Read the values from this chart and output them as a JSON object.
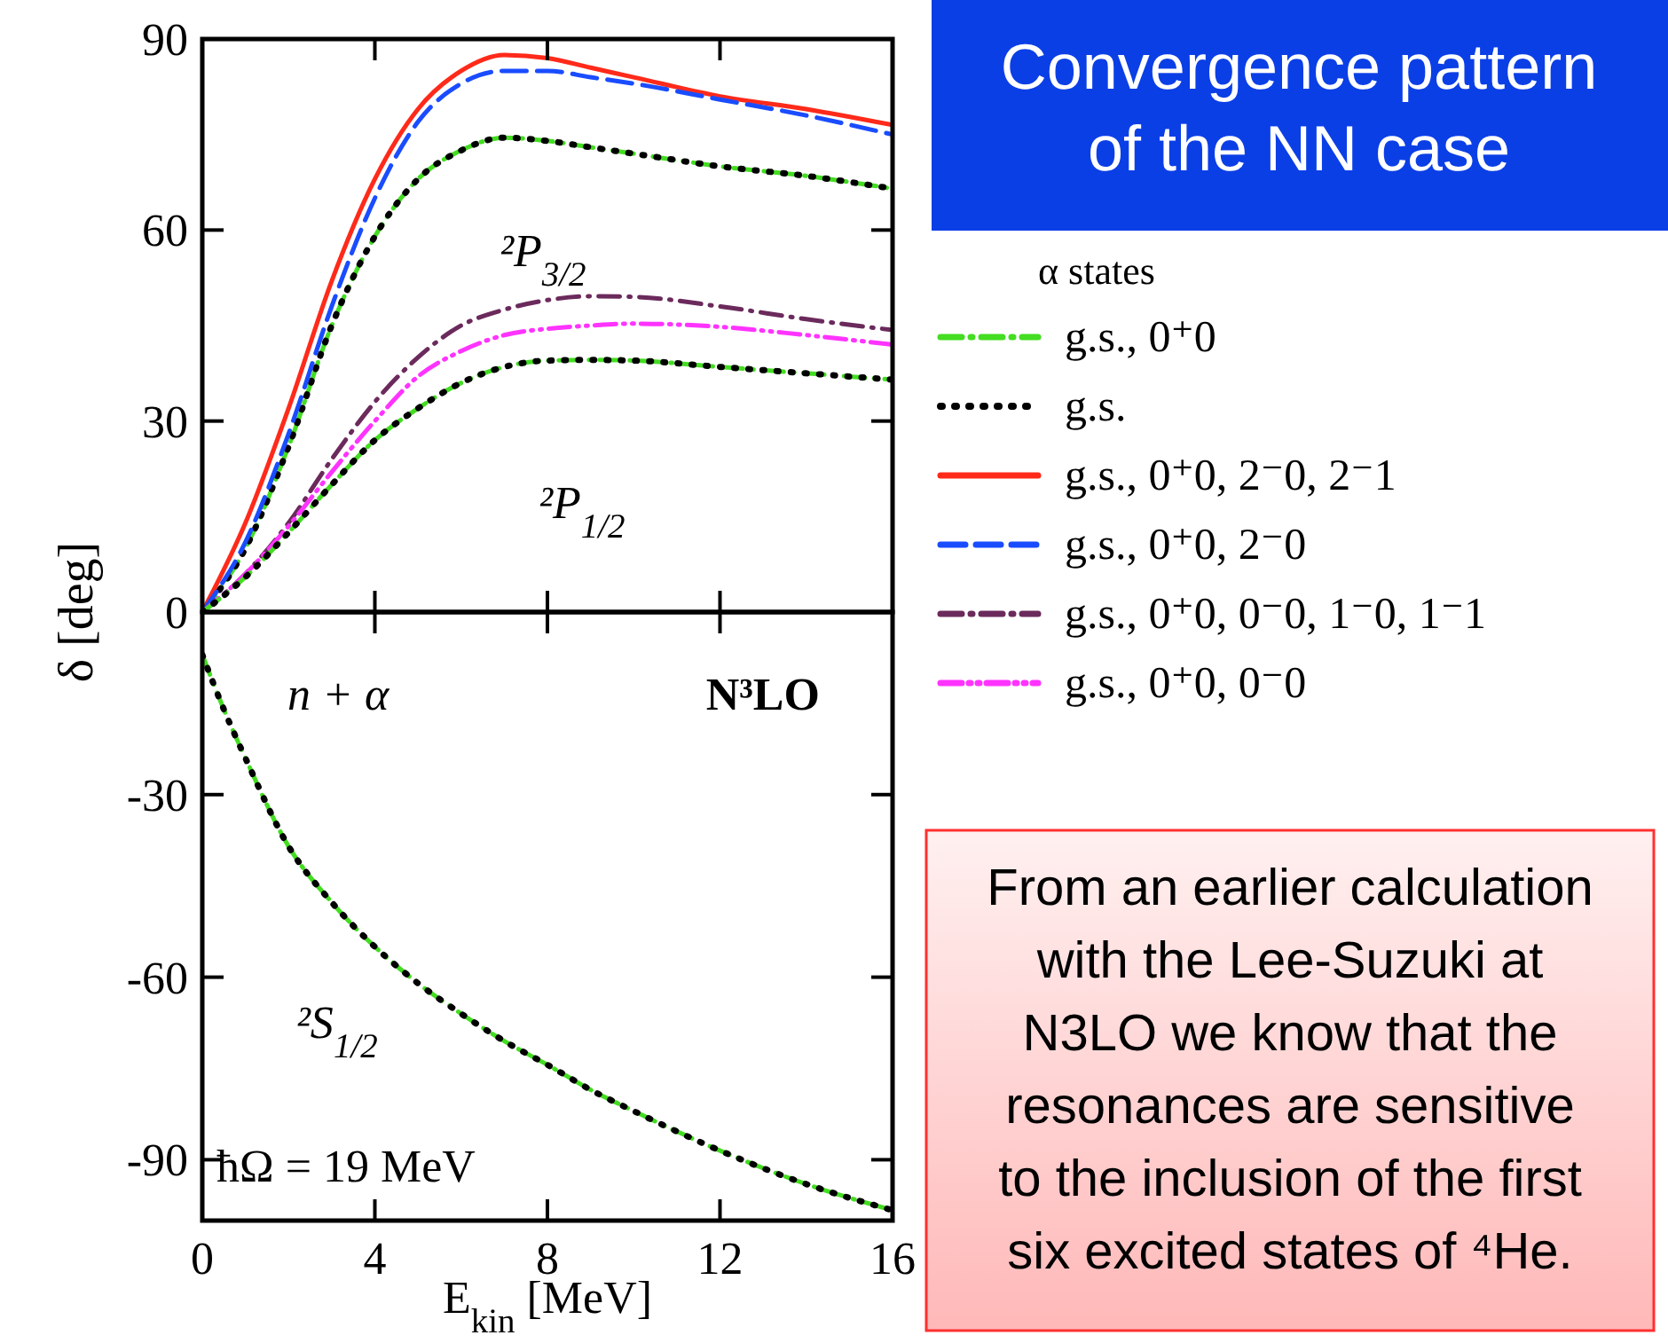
{
  "chart_data": [
    {
      "type": "line",
      "ylabel": "δ [deg]",
      "legend_title": "α states",
      "legend": "right",
      "tick_labels": "y",
      "xlim": [
        0,
        16
      ],
      "xticks": [
        0,
        4,
        8,
        12,
        16
      ],
      "ylim": [
        0,
        90
      ],
      "yticks": [
        0,
        30,
        60,
        90
      ],
      "x": [
        0,
        1,
        2,
        3,
        4,
        5,
        6,
        7,
        8,
        9,
        10,
        12,
        14,
        16
      ],
      "annotations": [
        "²P$_{3/2}$",
        "²P$_{1/2}$"
      ],
      "series": [
        {
          "name": "g.s., 0⁺0",
          "color": "#44dd22",
          "line_style": "dashdot",
          "values": [
            0,
            10,
            26,
            45,
            59,
            68,
            72.5,
            74.5,
            74,
            73,
            72,
            70,
            68.5,
            66.5
          ]
        },
        {
          "name": "g.s.",
          "color": "#000000",
          "line_style": "dotted",
          "values": [
            0,
            10,
            26,
            45,
            59,
            68,
            72.5,
            74.5,
            74,
            73,
            72,
            70,
            68.5,
            66.5
          ]
        },
        {
          "name": "g.s., 0⁺0, 2⁻0, 2⁻1",
          "color": "#ff2a1a",
          "line_style": "solid",
          "values": [
            0,
            14,
            32,
            52,
            68,
            79,
            85,
            87.5,
            87,
            85.5,
            84,
            81,
            79,
            76.5
          ]
        },
        {
          "name": "g.s., 0⁺0, 2⁻0",
          "color": "#1a4cff",
          "line_style": "dashed",
          "values": [
            0,
            11,
            28,
            48,
            65,
            77,
            83,
            85,
            85,
            84,
            83,
            80.5,
            78,
            75
          ]
        },
        {
          "name": "g.s., 0⁺0, 0⁻0, 1⁻0, 1⁻1",
          "color": "#6b2a5c",
          "line_style": "dashdot",
          "values": [
            0,
            6,
            14,
            24,
            33,
            40,
            45,
            47.5,
            49,
            49.6,
            49.5,
            48,
            46,
            44.3
          ]
        },
        {
          "name": "g.s., 0⁺0, 0⁻0",
          "color": "#ff33ff",
          "line_style": "dashdotdot",
          "values": [
            0,
            6,
            13.5,
            22,
            30,
            37,
            41,
            43.5,
            44.5,
            45,
            45.3,
            44.8,
            43.5,
            42
          ]
        },
        {
          "color": "#44dd22",
          "line_style": "dashdot",
          "values": [
            0,
            5.5,
            12.5,
            20,
            27,
            32,
            36,
            38.5,
            39.5,
            39.6,
            39.5,
            38.5,
            37.5,
            36.5
          ]
        },
        {
          "color": "#000000",
          "line_style": "dotted",
          "values": [
            0,
            5.5,
            12.5,
            20,
            27,
            32,
            36,
            38.5,
            39.5,
            39.6,
            39.5,
            38.5,
            37.5,
            36.5
          ]
        }
      ]
    },
    {
      "type": "line",
      "xlabel": "E$_{kin}$ [MeV]",
      "xlim": [
        0,
        16
      ],
      "xticks": [
        0,
        4,
        8,
        12,
        16
      ],
      "ylim": [
        -100,
        0
      ],
      "yticks": [
        -30,
        -60,
        -90
      ],
      "x": [
        0,
        0.5,
        1,
        2,
        3,
        4,
        5,
        6,
        7,
        8,
        9,
        10,
        12,
        14,
        16
      ],
      "annotations": [
        "n + α",
        "N³LO",
        "²S$_{1/2}$",
        "ħΩ = 19 MeV"
      ],
      "series": [
        {
          "color": "#44dd22",
          "line_style": "dashdot",
          "values": [
            -7,
            -16,
            -24,
            -38.5,
            -47.7,
            -55,
            -61,
            -66,
            -70.5,
            -74.4,
            -78.5,
            -82,
            -88.5,
            -94,
            -98.3
          ]
        },
        {
          "color": "#000000",
          "line_style": "dotted",
          "values": [
            -7,
            -16,
            -24,
            -38.5,
            -47.7,
            -55,
            -61,
            -66,
            -70.5,
            -74.4,
            -78.5,
            -82,
            -88.5,
            -94,
            -98.3
          ]
        }
      ]
    },
    {
      "type": "other",
      "title": "Convergence pattern of the NN case"
    },
    {
      "type": "other",
      "annotations": [
        "From an earlier calculation with the Lee-Suzuki at N3LO we know that the resonances are sensitive to the inclusion of the first six excited states of ⁴He."
      ]
    }
  ]
}
